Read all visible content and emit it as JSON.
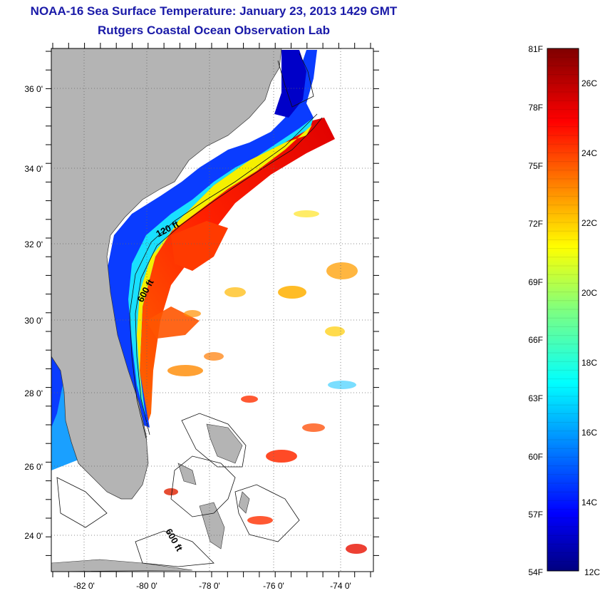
{
  "title": {
    "line1": "NOAA-16 Sea Surface Temperature:  January 23, 2013 1429 GMT",
    "line2": "Rutgers Coastal Ocean Observation Lab"
  },
  "map": {
    "lat_labels": [
      "36 0'",
      "34 0'",
      "32 0'",
      "30 0'",
      "28 0'",
      "26 0'",
      "24 0'"
    ],
    "lon_labels": [
      "-82 0'",
      "-80 0'",
      "-78 0'",
      "-76 0'",
      "-74 0'"
    ],
    "contour_labels": [
      "120 ft",
      "600 ft",
      "600 ft"
    ],
    "extent": {
      "lon": [
        -83,
        -73
      ],
      "lat": [
        23,
        37
      ]
    },
    "land_color": "#b4b4b4"
  },
  "colorbar": {
    "f_labels": [
      "81F",
      "78F",
      "75F",
      "72F",
      "69F",
      "66F",
      "63F",
      "60F",
      "57F",
      "54F"
    ],
    "c_labels": [
      "26C",
      "24C",
      "22C",
      "20C",
      "18C",
      "16C",
      "14C",
      "12C"
    ],
    "range_c": [
      12,
      27
    ]
  }
}
